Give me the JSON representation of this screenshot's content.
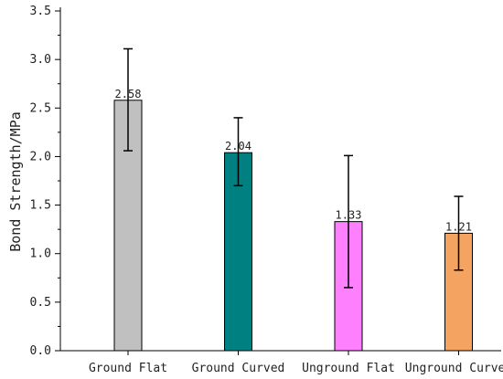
{
  "chart_data": {
    "type": "bar",
    "title": "",
    "xlabel": "",
    "ylabel": "Bond Strength/MPa",
    "categories": [
      "Ground Flat",
      "Ground Curved",
      "Unground Flat",
      "Unground Curved"
    ],
    "values": [
      2.58,
      2.04,
      1.33,
      1.21
    ],
    "value_labels": [
      "2.58",
      "2.04",
      "1.33",
      "1.21"
    ],
    "error_low": [
      2.06,
      1.7,
      0.65,
      0.83
    ],
    "error_high": [
      3.11,
      2.4,
      2.01,
      1.59
    ],
    "colors": [
      "#c0c0c0",
      "#008080",
      "#ff80ff",
      "#f4a460"
    ],
    "ylim": [
      0,
      3.5
    ],
    "yticks": [
      0,
      0.5,
      1.0,
      1.5,
      2.0,
      2.5,
      3.0,
      3.5
    ],
    "ytick_labels": [
      "0.0",
      "0.5",
      "1.0",
      "1.5",
      "2.0",
      "2.5",
      "3.0",
      "3.5"
    ],
    "grid": false,
    "legend": "none"
  }
}
